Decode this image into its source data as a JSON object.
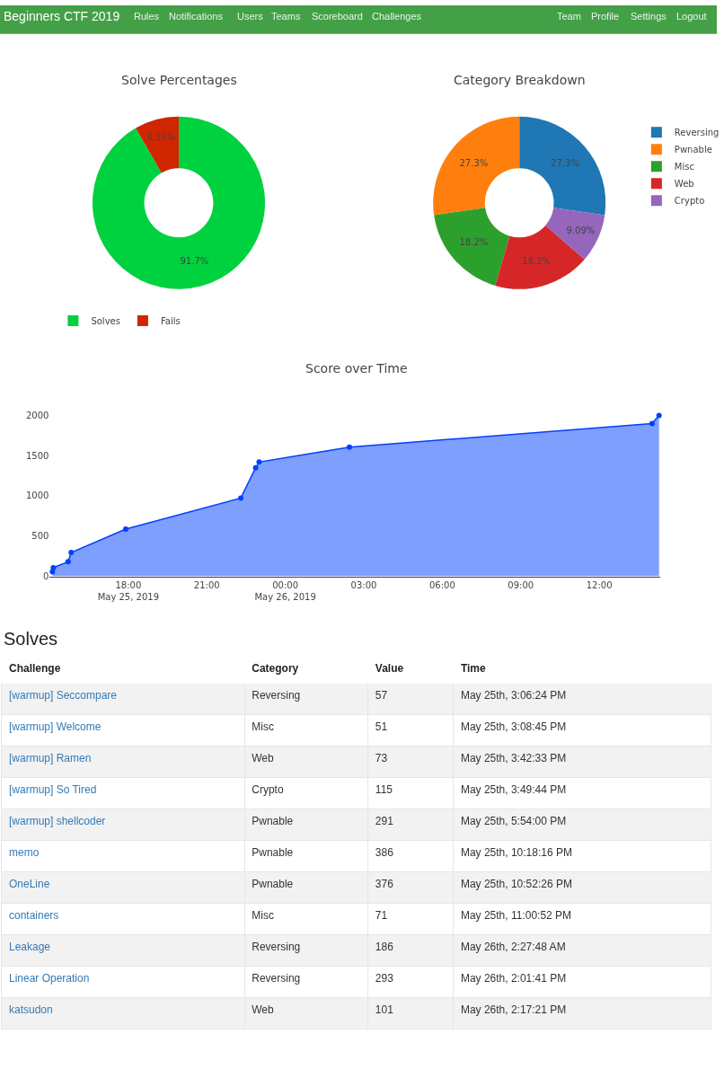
{
  "chart_data": [
    {
      "type": "other",
      "title": "Beginners CTF 2019",
      "annotations": [
        "Rules",
        "Notifications",
        "Users",
        "Teams",
        "Scoreboard",
        "Challenges",
        "Team",
        "Profile",
        "Settings",
        "Logout"
      ]
    },
    {
      "type": "donut",
      "title": "Solve Percentages",
      "categories": [
        "Solves",
        "Fails"
      ],
      "values": [
        91.7,
        8.33
      ],
      "colors": [
        "#00d13f",
        "#cf2600"
      ],
      "value_labels": [
        "91.7%",
        "8.33%"
      ],
      "legend": "bottom left"
    },
    {
      "type": "donut",
      "title": "Category Breakdown",
      "categories": [
        "Reversing",
        "Pwnable",
        "Misc",
        "Web",
        "Crypto"
      ],
      "values": [
        27.3,
        27.3,
        18.2,
        18.2,
        9.09
      ],
      "colors": [
        "#1f77b4",
        "#ff7f0e",
        "#2ca02c",
        "#d62728",
        "#9467bd"
      ],
      "value_labels": [
        "27.3%",
        "27.3%",
        "18.2%",
        "18.2%",
        "9.09%"
      ],
      "legend": "top right"
    },
    {
      "type": "area",
      "title": "Score over Time",
      "x": [
        "2019-05-25T15:06",
        "2019-05-25T15:08",
        "2019-05-25T15:42",
        "2019-05-25T15:49",
        "2019-05-25T17:54",
        "2019-05-25T22:18",
        "2019-05-25T22:52",
        "2019-05-25T23:00",
        "2019-05-26T02:27",
        "2019-05-26T14:01",
        "2019-05-26T14:17"
      ],
      "series": [
        {
          "color": "#0040ff",
          "values": [
            57,
            108,
            181,
            296,
            587,
            973,
            1349,
            1420,
            1606,
            1899,
            2000
          ]
        }
      ],
      "marker": "circle",
      "xlim": [
        "2019-05-25T15:00",
        "2019-05-26T14:19"
      ],
      "xticks": [
        {
          "value": "2019-05-25T18:00",
          "label": "18:00\nMay 25, 2019"
        },
        {
          "value": "2019-05-25T21:00",
          "label": "21:00"
        },
        {
          "value": "2019-05-26T00:00",
          "label": "00:00\nMay 26, 2019"
        },
        {
          "value": "2019-05-26T03:00",
          "label": "03:00"
        },
        {
          "value": "2019-05-26T06:00",
          "label": "06:00"
        },
        {
          "value": "2019-05-26T09:00",
          "label": "09:00"
        },
        {
          "value": "2019-05-26T12:00",
          "label": "12:00"
        }
      ],
      "ylim": [
        0,
        2000
      ],
      "yticks": [
        0,
        500,
        1000,
        1500,
        2000
      ]
    },
    {
      "type": "other",
      "title": "Solves",
      "categories": [
        "Challenge",
        "Category",
        "Value",
        "Time"
      ],
      "cells": [
        [
          "[warmup] Seccompare",
          "Reversing",
          "57",
          "May 25th, 3:06:24 PM"
        ],
        [
          "[warmup] Welcome",
          "Misc",
          "51",
          "May 25th, 3:08:45 PM"
        ],
        [
          "[warmup] Ramen",
          "Web",
          "73",
          "May 25th, 3:42:33 PM"
        ],
        [
          "[warmup] So Tired",
          "Crypto",
          "115",
          "May 25th, 3:49:44 PM"
        ],
        [
          "[warmup] shellcoder",
          "Pwnable",
          "291",
          "May 25th, 5:54:00 PM"
        ],
        [
          "memo",
          "Pwnable",
          "386",
          "May 25th, 10:18:16 PM"
        ],
        [
          "OneLine",
          "Pwnable",
          "376",
          "May 25th, 10:52:26 PM"
        ],
        [
          "containers",
          "Misc",
          "71",
          "May 25th, 11:00:52 PM"
        ],
        [
          "Leakage",
          "Reversing",
          "186",
          "May 26th, 2:27:48 AM"
        ],
        [
          "Linear Operation",
          "Reversing",
          "293",
          "May 26th, 2:01:41 PM"
        ],
        [
          "katsudon",
          "Web",
          "101",
          "May 26th, 2:17:21 PM"
        ]
      ]
    }
  ]
}
